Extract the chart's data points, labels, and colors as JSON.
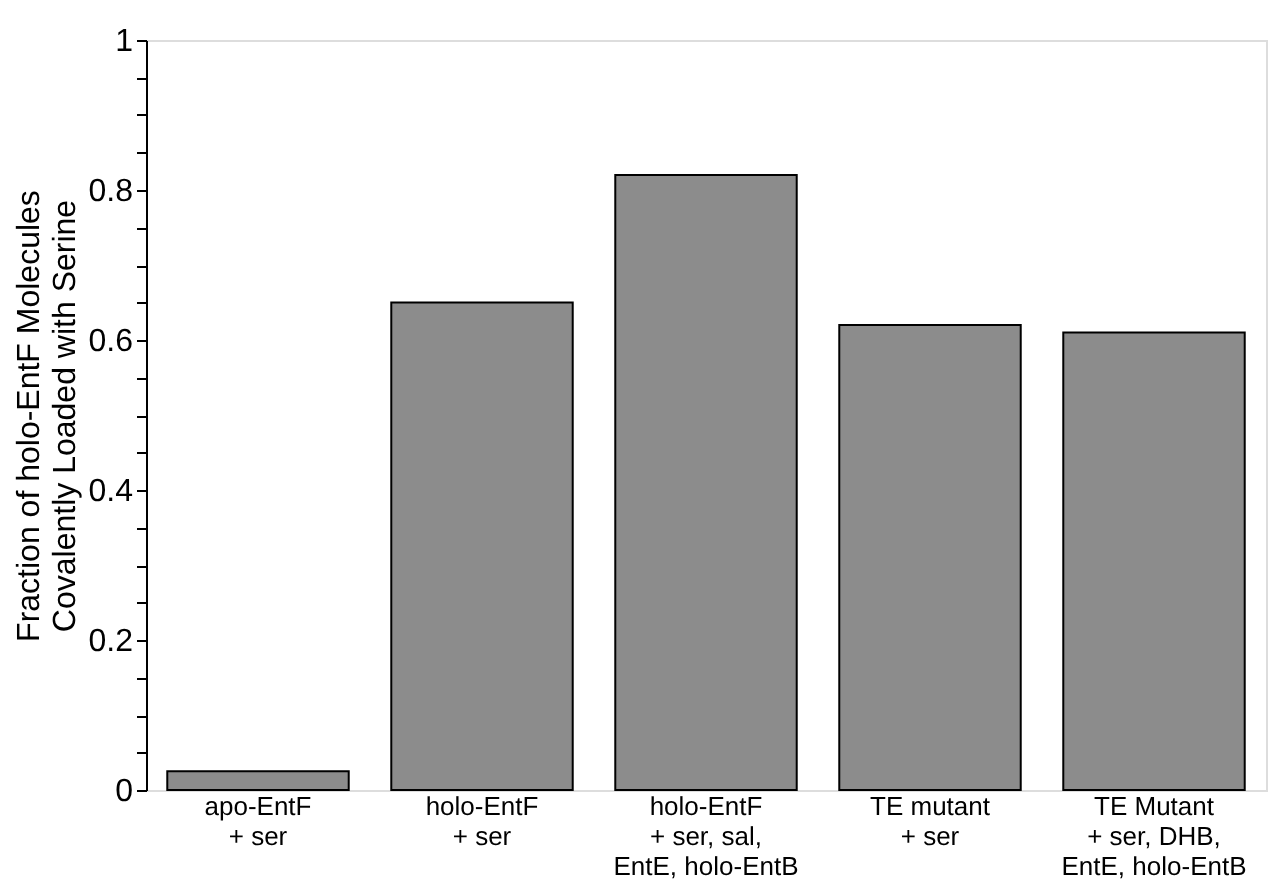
{
  "chart_data": {
    "type": "bar",
    "ylabel": "Fraction of holo-EntF Molecules\nCovalently Loaded with Serine",
    "categories": [
      "apo-EntF\n+ ser",
      "holo-EntF\n+ ser",
      "holo-EntF\n+ ser, sal,\nEntE, holo-EntB",
      "TE mutant\n+ ser",
      "TE Mutant\n+ ser, DHB,\nEntE, holo-EntB"
    ],
    "values": [
      0.025,
      0.65,
      0.82,
      0.62,
      0.61
    ],
    "color": "#8c8c8c",
    "ylim": [
      0,
      1
    ],
    "yticks": [
      0,
      {
        "value": 0.05,
        "label": null
      },
      {
        "value": 0.1,
        "label": null
      },
      {
        "value": 0.15,
        "label": null
      },
      0.2,
      {
        "value": 0.25,
        "label": null
      },
      {
        "value": 0.3,
        "label": null
      },
      {
        "value": 0.35,
        "label": null
      },
      0.4,
      {
        "value": 0.45,
        "label": null
      },
      {
        "value": 0.5,
        "label": null
      },
      {
        "value": 0.55,
        "label": null
      },
      0.6,
      {
        "value": 0.65,
        "label": null
      },
      {
        "value": 0.7,
        "label": null
      },
      {
        "value": 0.75,
        "label": null
      },
      0.8,
      {
        "value": 0.85,
        "label": null
      },
      {
        "value": 0.9,
        "label": null
      },
      {
        "value": 0.95,
        "label": null
      },
      1
    ],
    "grid": false
  }
}
